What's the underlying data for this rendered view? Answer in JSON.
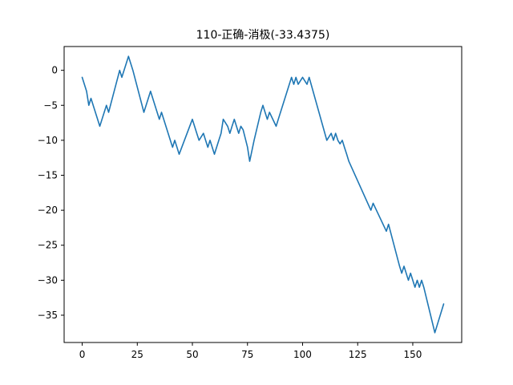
{
  "chart_data": {
    "type": "line",
    "title": "110-正确-消极(-33.4375)",
    "xlabel": "",
    "ylabel": "",
    "xlim": [
      -8.2,
      172.2
    ],
    "ylim": [
      -38.9,
      3.4
    ],
    "xticks": [
      0,
      25,
      50,
      75,
      100,
      125,
      150
    ],
    "yticks": [
      0,
      -5,
      -10,
      -15,
      -20,
      -25,
      -30,
      -35
    ],
    "grid": false,
    "legend": "none",
    "series": [
      {
        "color": "#1f77b4",
        "x": [
          0,
          2,
          3,
          4,
          8,
          11,
          12,
          17,
          18,
          21,
          23,
          28,
          31,
          35,
          36,
          40,
          41,
          42,
          43,
          44,
          50,
          52,
          53,
          55,
          56,
          57,
          58,
          60,
          62,
          63,
          64,
          66,
          67,
          68,
          69,
          70,
          71,
          72,
          73,
          75,
          76,
          78,
          81,
          82,
          83,
          84,
          85,
          88,
          89,
          95,
          96,
          97,
          98,
          100,
          102,
          103,
          111,
          113,
          114,
          115,
          116,
          117,
          118,
          119,
          120,
          121,
          131,
          132,
          138,
          139,
          144,
          145,
          146,
          148,
          149,
          151,
          152,
          153,
          154,
          155,
          160,
          164
        ],
        "y": [
          -1,
          -3,
          -5,
          -4,
          -8,
          -5,
          -6,
          0,
          -1,
          2,
          0,
          -6,
          -3,
          -7,
          -6,
          -10,
          -11,
          -10,
          -11,
          -12,
          -7,
          -9,
          -10,
          -9,
          -10,
          -11,
          -10,
          -12,
          -10,
          -9,
          -7,
          -8,
          -9,
          -8,
          -7,
          -8,
          -9,
          -8,
          -8.5,
          -11,
          -13,
          -10,
          -6,
          -5,
          -6,
          -7,
          -6,
          -8,
          -7,
          -1,
          -2,
          -1,
          -2,
          -1,
          -2,
          -1,
          -10,
          -9,
          -10,
          -9,
          -10,
          -10.5,
          -10,
          -11,
          -12,
          -13,
          -20,
          -19,
          -23,
          -22,
          -28,
          -29,
          -28,
          -30,
          -29,
          -31,
          -30,
          -31,
          -30,
          -31,
          -37.5,
          -33.4
        ]
      }
    ]
  }
}
